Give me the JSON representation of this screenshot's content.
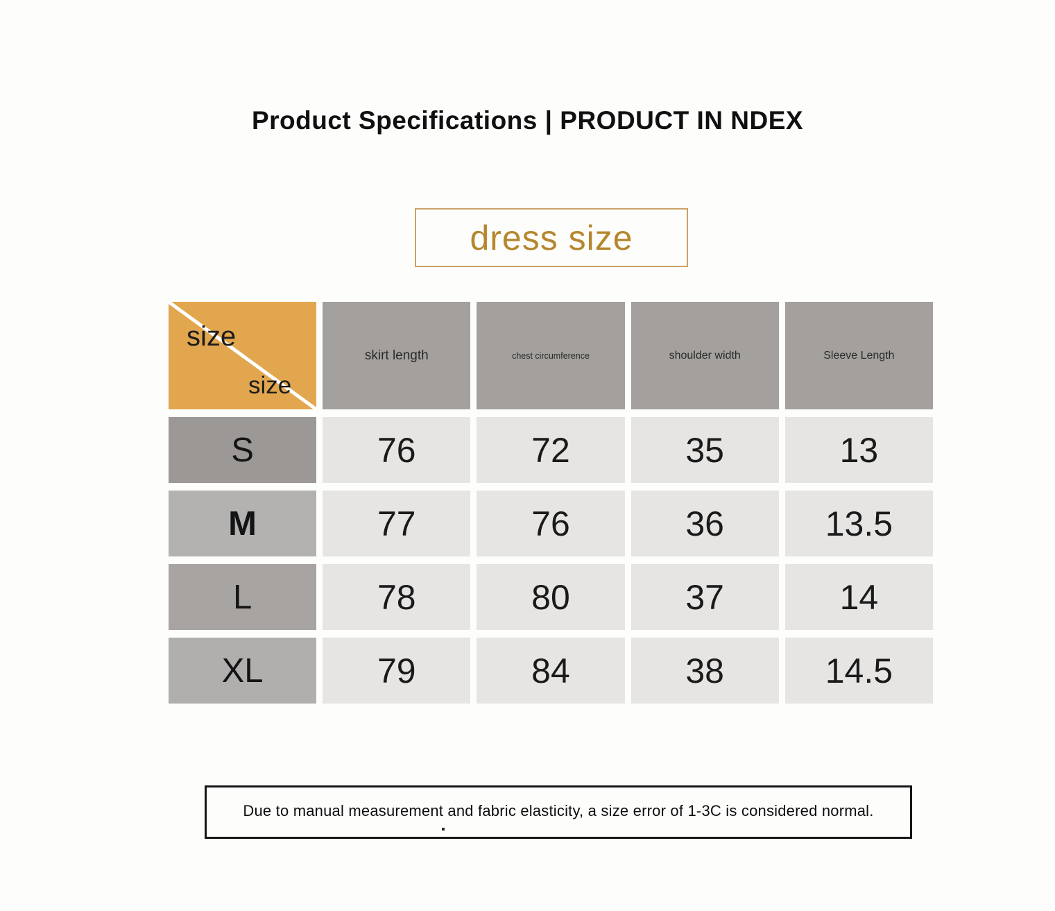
{
  "page": {
    "title": "Product Specifications | PRODUCT IN NDEX"
  },
  "badge": {
    "label": "dress size"
  },
  "table": {
    "corner": {
      "top_label": "size",
      "bottom_label": "size"
    },
    "columns": [
      "skirt length",
      "chest circumference",
      "shoulder width",
      "Sleeve Length"
    ],
    "rows": [
      {
        "label": "S",
        "values": [
          "76",
          "72",
          "35",
          "13"
        ]
      },
      {
        "label": "M",
        "values": [
          "77",
          "76",
          "36",
          "13.5"
        ]
      },
      {
        "label": "L",
        "values": [
          "78",
          "80",
          "37",
          "14"
        ]
      },
      {
        "label": "XL",
        "values": [
          "79",
          "84",
          "38",
          "14.5"
        ]
      }
    ]
  },
  "footer": {
    "note": "Due to manual measurement and fabric elasticity, a size error of 1-3C is considered normal."
  },
  "colors": {
    "accent_orange": "#e2a64f",
    "badge_gold": "#b5872e",
    "badge_border": "#c9a266",
    "header_gray": "#a3a09d",
    "row_label_dark": "#9b9896",
    "row_label_light": "#b4b2b1",
    "cell_light": "#e6e5e4",
    "background": "#fdfdfc"
  }
}
